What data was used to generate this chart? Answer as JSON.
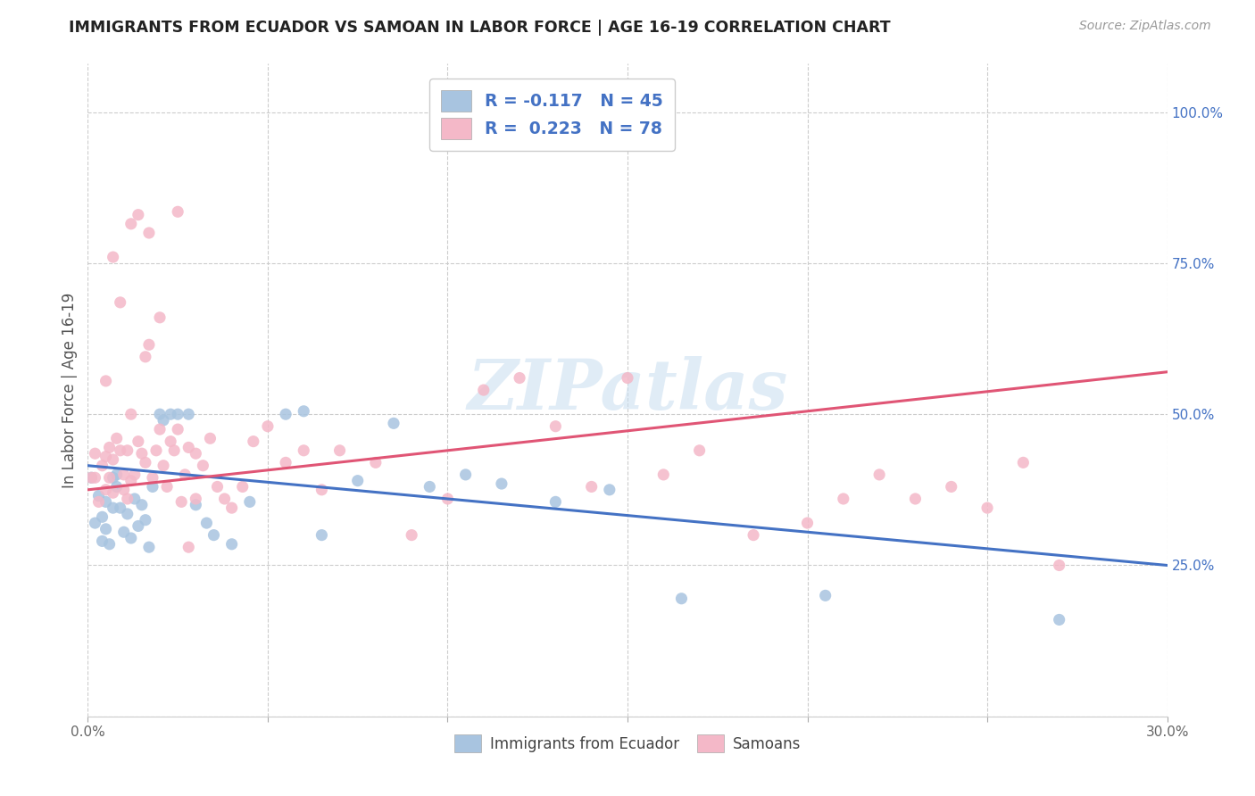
{
  "title": "IMMIGRANTS FROM ECUADOR VS SAMOAN IN LABOR FORCE | AGE 16-19 CORRELATION CHART",
  "source": "Source: ZipAtlas.com",
  "ylabel": "In Labor Force | Age 16-19",
  "x_min": 0.0,
  "x_max": 0.3,
  "y_min": 0.0,
  "y_max": 1.08,
  "legend_label1": "R = -0.117   N = 45",
  "legend_label2": "R = 0.223   N = 78",
  "legend_color1": "#a8c4e0",
  "legend_color2": "#f4b8c8",
  "ecuador_color": "#a8c4e0",
  "samoan_color": "#f4b8c8",
  "ecuador_line_color": "#4472c4",
  "samoan_line_color": "#e05575",
  "watermark": "ZIPatlas",
  "ecuador_R": -0.117,
  "samoan_R": 0.223,
  "ecuador_intercept": 0.415,
  "ecuador_slope": -0.55,
  "samoan_intercept": 0.375,
  "samoan_slope": 0.65,
  "ecuador_points_x": [
    0.001,
    0.002,
    0.003,
    0.004,
    0.004,
    0.005,
    0.005,
    0.006,
    0.007,
    0.007,
    0.008,
    0.008,
    0.009,
    0.01,
    0.011,
    0.012,
    0.013,
    0.014,
    0.015,
    0.016,
    0.017,
    0.018,
    0.02,
    0.021,
    0.023,
    0.025,
    0.028,
    0.03,
    0.033,
    0.035,
    0.04,
    0.045,
    0.055,
    0.06,
    0.065,
    0.075,
    0.085,
    0.095,
    0.105,
    0.115,
    0.13,
    0.145,
    0.165,
    0.205,
    0.27
  ],
  "ecuador_points_y": [
    0.395,
    0.32,
    0.365,
    0.33,
    0.29,
    0.355,
    0.31,
    0.285,
    0.345,
    0.395,
    0.4,
    0.38,
    0.345,
    0.305,
    0.335,
    0.295,
    0.36,
    0.315,
    0.35,
    0.325,
    0.28,
    0.38,
    0.5,
    0.49,
    0.5,
    0.5,
    0.5,
    0.35,
    0.32,
    0.3,
    0.285,
    0.355,
    0.5,
    0.505,
    0.3,
    0.39,
    0.485,
    0.38,
    0.4,
    0.385,
    0.355,
    0.375,
    0.195,
    0.2,
    0.16
  ],
  "samoan_points_x": [
    0.001,
    0.002,
    0.002,
    0.003,
    0.004,
    0.005,
    0.005,
    0.006,
    0.006,
    0.007,
    0.007,
    0.008,
    0.009,
    0.01,
    0.01,
    0.011,
    0.011,
    0.012,
    0.012,
    0.013,
    0.014,
    0.015,
    0.016,
    0.016,
    0.017,
    0.018,
    0.019,
    0.02,
    0.021,
    0.022,
    0.023,
    0.024,
    0.025,
    0.026,
    0.027,
    0.028,
    0.03,
    0.032,
    0.034,
    0.036,
    0.038,
    0.04,
    0.043,
    0.046,
    0.05,
    0.055,
    0.06,
    0.065,
    0.07,
    0.08,
    0.09,
    0.1,
    0.11,
    0.12,
    0.13,
    0.14,
    0.15,
    0.16,
    0.17,
    0.185,
    0.2,
    0.21,
    0.22,
    0.23,
    0.24,
    0.25,
    0.26,
    0.27,
    0.028,
    0.03,
    0.005,
    0.007,
    0.009,
    0.012,
    0.014,
    0.017,
    0.02,
    0.025
  ],
  "samoan_points_y": [
    0.395,
    0.435,
    0.395,
    0.355,
    0.415,
    0.375,
    0.43,
    0.395,
    0.445,
    0.37,
    0.425,
    0.46,
    0.44,
    0.375,
    0.4,
    0.36,
    0.44,
    0.5,
    0.39,
    0.4,
    0.455,
    0.435,
    0.42,
    0.595,
    0.615,
    0.395,
    0.44,
    0.475,
    0.415,
    0.38,
    0.455,
    0.44,
    0.475,
    0.355,
    0.4,
    0.445,
    0.435,
    0.415,
    0.46,
    0.38,
    0.36,
    0.345,
    0.38,
    0.455,
    0.48,
    0.42,
    0.44,
    0.375,
    0.44,
    0.42,
    0.3,
    0.36,
    0.54,
    0.56,
    0.48,
    0.38,
    0.56,
    0.4,
    0.44,
    0.3,
    0.32,
    0.36,
    0.4,
    0.36,
    0.38,
    0.345,
    0.42,
    0.25,
    0.28,
    0.36,
    0.555,
    0.76,
    0.685,
    0.815,
    0.83,
    0.8,
    0.66,
    0.835
  ]
}
